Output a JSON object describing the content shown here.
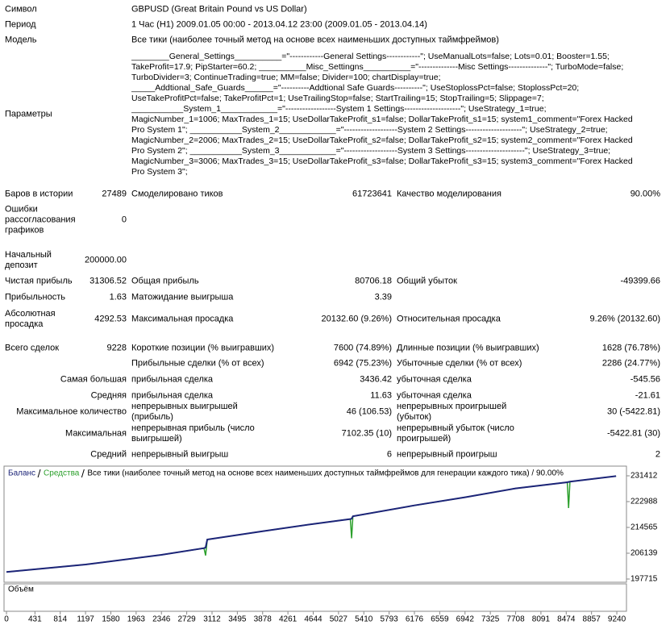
{
  "report": {
    "symbol": {
      "label": "Символ",
      "value": "GBPUSD (Great Britain Pound vs US Dollar)"
    },
    "period": {
      "label": "Период",
      "value": "1 Час (H1) 2009.01.05 00:00 - 2013.04.12 23:00 (2009.01.05 - 2013.04.14)"
    },
    "model": {
      "label": "Модель",
      "value": "Все тики (наиболее точный метод на основе всех наименьших доступных таймфреймов)"
    },
    "parameters": {
      "label": "Параметры",
      "lines": [
        "________General_Settings__________=\"------------General Settings------------\"; UseManualLots=false; Lots=0.01; Booster=1.55;",
        "TakeProfit=17.9; PipStarter=60.2; __________Misc_Settingns__________=\"--------------Misc Settings--------------\"; TurboMode=false;",
        "TurboDivider=3; ContinueTrading=true; MM=false; Divider=100; chartDisplay=true;",
        "_____Addtional_Safe_Guards______=\"----------Addtional Safe Guards----------\"; UseStoplossPct=false; StoplossPct=20;",
        "UseTakeProfitPct=false; TakeProfitPct=1; UseTrailingStop=false; StartTrailing=15; StopTrailing=5; Slippage=7;",
        "___________System_1____________=\"------------------System 1 Settings--------------------\"; UseStrategy_1=true;",
        "MagicNumber_1=1006; MaxTrades_1=15; UseDollarTakeProfit_s1=false; DollarTakeProfit_s1=15; system1_comment=\"Forex Hacked",
        "Pro System 1\"; ___________System_2____________=\"-------------------System 2 Settings--------------------\"; UseStrategy_2=true;",
        "MagicNumber_2=2006; MaxTrades_2=15; UseDollarTakeProfit_s2=false; DollarTakeProfit_s2=15; system2_comment=\"Forex Hacked",
        "Pro System 2\"; ___________System_3____________=\"-------------------System 3 Settings---------------------\"; UseStrategy_3=true;",
        "MagicNumber_3=3006; MaxTrades_3=15; UseDollarTakeProfit_s3=false; DollarTakeProfit_s3=15; system3_comment=\"Forex Hacked",
        "Pro System 3\";"
      ]
    },
    "stats": [
      {
        "label": "Баров в истории",
        "value": "27489",
        "label2": "Смоделировано тиков",
        "value2": "61723641",
        "label3": "Качество моделирования",
        "value3": "90.00%"
      },
      {
        "label": "Ошибки рассогласования графиков",
        "value": "0"
      },
      {
        "label": "Начальный депозит",
        "value": "200000.00"
      },
      {
        "label": "Чистая прибыль",
        "value": "31306.52",
        "label2": "Общая прибыль",
        "value2": "80706.18",
        "label3": "Общий убыток",
        "value3": "-49399.66"
      },
      {
        "label": "Прибыльность",
        "value": "1.63",
        "label2": "Матожидание выигрыша",
        "value2": "3.39"
      },
      {
        "label": "Абсолютная просадка",
        "value": "4292.53",
        "label2": "Максимальная просадка",
        "value2": "20132.60 (9.26%)",
        "label3": "Относительная просадка",
        "value3": "9.26% (20132.60)"
      },
      {
        "label": "Всего сделок",
        "value": "9228",
        "label2": "Короткие позиции (% выигравших)",
        "value2": "7600 (74.89%)",
        "label3": "Длинные позиции (% выигравших)",
        "value3": "1628 (76.78%)"
      },
      {
        "label2": "Прибыльные сделки (% от всех)",
        "value2": "6942 (75.23%)",
        "label3": "Убыточные сделки (% от всех)",
        "value3": "2286 (24.77%)"
      },
      {
        "label": "Самая большая",
        "label2": "прибыльная сделка",
        "value2": "3436.42",
        "label3": "убыточная сделка",
        "value3": "-545.56"
      },
      {
        "label": "Средняя",
        "label2": "прибыльная сделка",
        "value2": "11.63",
        "label3": "убыточная сделка",
        "value3": "-21.61"
      },
      {
        "label": "Максимальное количество",
        "label2": "непрерывных выигрышей (прибыль)",
        "value2": "46 (106.53)",
        "label3": "непрерывных проигрышей (убыток)",
        "value3": "30 (-5422.81)"
      },
      {
        "label": "Максимальная",
        "label2": "непрерывная прибыль (число выигрышей)",
        "value2": "7102.35 (10)",
        "label3": "непрерывный убыток (число проигрышей)",
        "value3": "-5422.81 (30)"
      },
      {
        "label": "Средний",
        "label2": "непрерывный выигрыш",
        "value2": "6",
        "label3": "непрерывный проигрыш",
        "value3": "2"
      }
    ]
  },
  "chart_data": {
    "type": "line",
    "subtitle": "Все тики (наиболее точный метод на основе всех наименьших доступных таймфреймов для генерации каждого тика) / 90.00%",
    "volume_label": "Объём",
    "x": [
      0,
      1197,
      2346,
      2990,
      3015,
      3040,
      3878,
      4644,
      5205,
      5225,
      5245,
      6176,
      6942,
      7708,
      8490,
      8510,
      8530,
      9228
    ],
    "series": [
      {
        "name": "Баланс",
        "color": "#1c2478",
        "values": [
          200000,
          202450,
          205600,
          207800,
          208000,
          210600,
          213300,
          215700,
          217300,
          217400,
          218200,
          221750,
          224400,
          227300,
          229300,
          229400,
          229500,
          231300
        ]
      },
      {
        "name": "Средства",
        "color": "#2ca02c",
        "values": [
          200000,
          202450,
          205600,
          207800,
          205400,
          210600,
          213300,
          215700,
          217300,
          211000,
          218200,
          221750,
          224400,
          227300,
          229300,
          220900,
          229500,
          231300
        ]
      }
    ],
    "xlim": [
      -37,
      9386
    ],
    "ylim": [
      196660,
      234570
    ],
    "xticks": [
      0,
      431,
      814,
      1197,
      1580,
      1963,
      2346,
      2729,
      3112,
      3495,
      3878,
      4261,
      4644,
      5027,
      5410,
      5793,
      6176,
      6559,
      6942,
      7325,
      7708,
      8091,
      8474,
      8857,
      9240
    ],
    "yticks": [
      197715,
      206139,
      214565,
      222988,
      231412
    ]
  }
}
